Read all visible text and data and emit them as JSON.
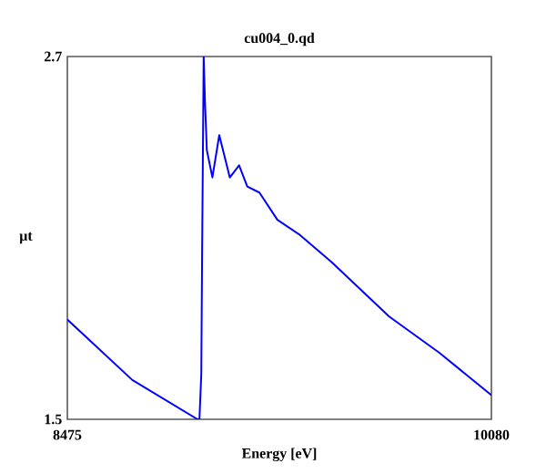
{
  "chart_data": {
    "type": "line",
    "title": "cu004_0.qd",
    "xlabel": "Energy [eV]",
    "ylabel": "µt",
    "xlim": [
      8475,
      10080
    ],
    "ylim": [
      1.5,
      2.7
    ],
    "xticks": [
      8475,
      10080
    ],
    "yticks": [
      1.5,
      2.7
    ],
    "grid": false,
    "series": [
      {
        "color": "#0000ff",
        "x": [
          8475,
          8721,
          8968,
          8975,
          8982,
          8985,
          8991,
          8996,
          9003,
          9024,
          9050,
          9090,
          9125,
          9156,
          9202,
          9270,
          9355,
          9475,
          9693,
          9883,
          10080
        ],
        "values": [
          1.83,
          1.63,
          1.5,
          1.5,
          1.65,
          2.04,
          2.7,
          2.55,
          2.39,
          2.3,
          2.44,
          2.3,
          2.34,
          2.27,
          2.25,
          2.16,
          2.11,
          2.02,
          1.84,
          1.72,
          1.58
        ]
      }
    ]
  }
}
